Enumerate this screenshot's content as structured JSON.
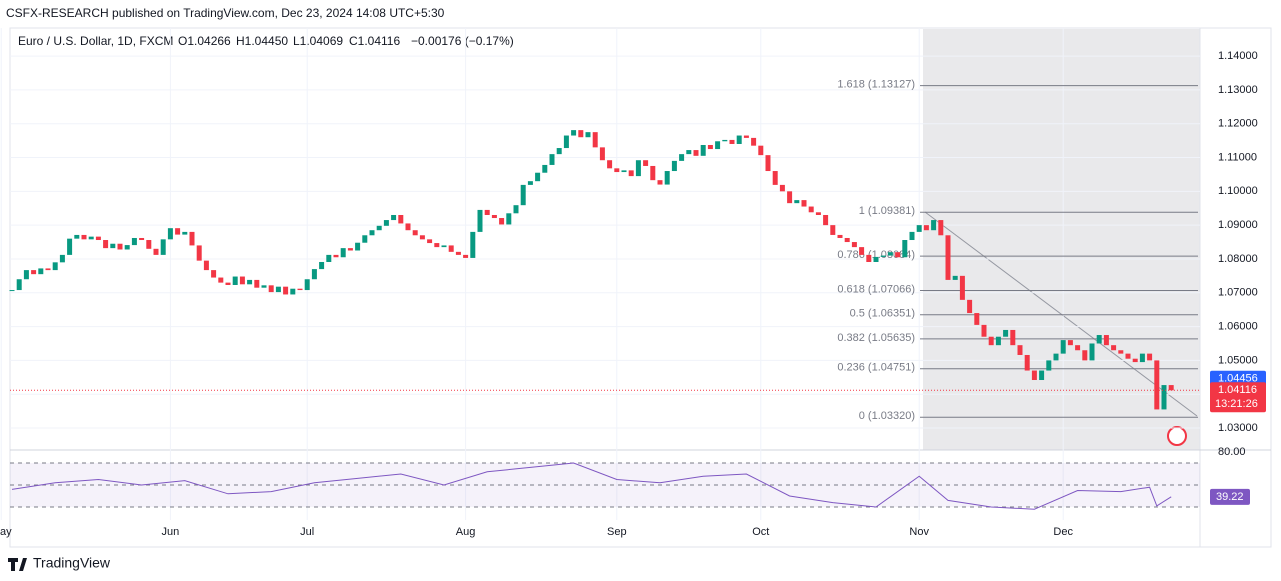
{
  "header": {
    "published": "CSFX-RESEARCH published on TradingView.com, Dec 23, 2024 14:08 UTC+5:30",
    "brand": "TradingView"
  },
  "chart_data": {
    "type": "candlestick",
    "legend": {
      "symbol": "Euro / U.S. Dollar, 1D, FXCM",
      "open": "O1.04266",
      "high": "H1.04450",
      "low": "L1.04069",
      "close": "C1.04116",
      "change": "−0.00176 (−0.17%)"
    },
    "close": [
      1.0708,
      1.074,
      1.0767,
      1.0755,
      1.0772,
      1.0767,
      1.079,
      1.0812,
      1.086,
      1.0871,
      1.0858,
      1.0866,
      1.0856,
      1.0832,
      1.0845,
      1.0828,
      1.0841,
      1.0862,
      1.0856,
      1.083,
      1.0812,
      1.0858,
      1.0891,
      1.0872,
      1.088,
      1.084,
      1.0795,
      1.0767,
      1.0745,
      1.073,
      1.0723,
      1.0748,
      1.0725,
      1.0738,
      1.0715,
      1.0722,
      1.0702,
      1.0718,
      1.0695,
      1.0712,
      1.0708,
      1.074,
      1.077,
      1.0791,
      1.0812,
      1.0805,
      1.0832,
      1.0825,
      1.0848,
      1.087,
      1.0885,
      1.0898,
      1.0915,
      1.093,
      1.0905,
      1.0885,
      1.087,
      1.0858,
      1.0847,
      1.0835,
      1.084,
      1.0821,
      1.0812,
      1.0803,
      1.088,
      1.0945,
      1.093,
      1.0921,
      1.0902,
      1.0935,
      1.0959,
      1.1019,
      1.103,
      1.1055,
      1.1078,
      1.111,
      1.1128,
      1.1165,
      1.1181,
      1.116,
      1.1175,
      1.113,
      1.1092,
      1.1068,
      1.1057,
      1.1062,
      1.1045,
      1.1092,
      1.1075,
      1.1033,
      1.102,
      1.106,
      1.109,
      1.111,
      1.1122,
      1.1105,
      1.1137,
      1.1125,
      1.1148,
      1.1152,
      1.114,
      1.1165,
      1.1158,
      1.1135,
      1.1107,
      1.106,
      1.1019,
      1.1,
      1.0965,
      1.0974,
      1.0955,
      1.0938,
      1.093,
      1.09,
      1.0871,
      1.0862,
      1.085,
      1.0835,
      1.0812,
      1.0791,
      1.0806,
      1.081,
      1.082,
      1.0805,
      1.0856,
      1.088,
      1.09,
      1.0885,
      1.0915,
      1.087,
      1.0738,
      1.075,
      1.0679,
      1.064,
      1.0605,
      1.057,
      1.0545,
      1.057,
      1.059,
      1.0545,
      1.0516,
      1.047,
      1.0442,
      1.047,
      1.05,
      1.052,
      1.056,
      1.0545,
      1.053,
      1.05,
      1.055,
      1.0575,
      1.0545,
      1.053,
      1.052,
      1.0505,
      1.0495,
      1.052,
      1.05,
      1.0355,
      1.0427,
      1.04116
    ],
    "up_color": "#089981",
    "down_color": "#f23645",
    "ylim": [
      1.0235,
      1.1483
    ],
    "yticks": [
      {
        "value": 1.03,
        "label": "1.03000"
      },
      {
        "value": 1.04,
        "label": "1.04000"
      },
      {
        "value": 1.05,
        "label": "1.05000"
      },
      {
        "value": 1.06,
        "label": "1.06000"
      },
      {
        "value": 1.07,
        "label": "1.07000"
      },
      {
        "value": 1.08,
        "label": "1.08000"
      },
      {
        "value": 1.09,
        "label": "1.09000"
      },
      {
        "value": 1.1,
        "label": "1.10000"
      },
      {
        "value": 1.11,
        "label": "1.11000"
      },
      {
        "value": 1.12,
        "label": "1.12000"
      },
      {
        "value": 1.13,
        "label": "1.13000"
      },
      {
        "value": 1.14,
        "label": "1.14000"
      }
    ],
    "xticks": [
      {
        "value": -1.5,
        "label": "May"
      },
      {
        "value": 22,
        "label": "Jun"
      },
      {
        "value": 41,
        "label": "Jul"
      },
      {
        "value": 63,
        "label": "Aug"
      },
      {
        "value": 84,
        "label": "Sep"
      },
      {
        "value": 104,
        "label": "Oct"
      },
      {
        "value": 126,
        "label": "Nov"
      },
      {
        "value": 146,
        "label": "Dec"
      }
    ],
    "fib_levels": [
      {
        "value": 1.13127,
        "label": "1.618 (1.13127)"
      },
      {
        "value": 1.09381,
        "label": "1 (1.09381)"
      },
      {
        "value": 1.08084,
        "label": "0.786 (1.08084)"
      },
      {
        "value": 1.07066,
        "label": "0.618 (1.07066)"
      },
      {
        "value": 1.06351,
        "label": "0.5 (1.06351)"
      },
      {
        "value": 1.05635,
        "label": "0.382 (1.05635)"
      },
      {
        "value": 1.04751,
        "label": "0.236 (1.04751)"
      },
      {
        "value": 1.0332,
        "label": "0 (1.03320)"
      }
    ],
    "ma_last": 1.04456,
    "ma_color": "#2962ff",
    "countdown": "13:21:26",
    "rsi": {
      "x": [
        0,
        6,
        12,
        18,
        24,
        30,
        36,
        42,
        48,
        54,
        60,
        66,
        72,
        78,
        84,
        90,
        96,
        102,
        108,
        114,
        120,
        126,
        130,
        136,
        142,
        148,
        154,
        158,
        159,
        161
      ],
      "values": [
        46,
        52,
        55,
        50,
        54,
        42,
        44,
        52,
        56,
        60,
        50,
        62,
        66,
        70,
        55,
        52,
        58,
        60,
        40,
        34,
        30,
        58,
        36,
        30,
        28,
        45,
        44,
        48,
        31,
        39.22
      ],
      "color": "#7e57c2",
      "ylim": [
        22.7,
        77.3
      ],
      "yticks": [
        {
          "value": 80,
          "label": "80.00"
        }
      ],
      "bands": [
        70,
        50,
        30
      ]
    }
  }
}
